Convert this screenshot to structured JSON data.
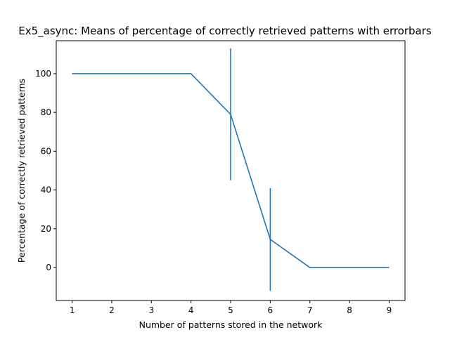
{
  "chart_data": {
    "type": "line",
    "title": "Ex5_async: Means of percentage of correctly retrieved patterns with errorbars",
    "xlabel": "Number of patterns stored in the network",
    "ylabel": "Percentage of correctly retrieved patterns",
    "x": [
      1,
      2,
      3,
      4,
      5,
      6,
      7,
      8,
      9
    ],
    "series": [
      {
        "values": [
          100,
          100,
          100,
          100,
          79,
          14.5,
          0,
          0,
          0
        ],
        "errors": [
          0,
          0,
          0,
          0,
          34,
          26.5,
          0,
          0,
          0
        ],
        "color": "#1f77b4"
      }
    ],
    "xlim": [
      0.6,
      9.4
    ],
    "ylim": [
      -17,
      117
    ],
    "xticks": [
      1,
      2,
      3,
      4,
      5,
      6,
      7,
      8,
      9
    ],
    "yticks": [
      0,
      20,
      40,
      60,
      80,
      100
    ],
    "grid": false,
    "legend": "none"
  }
}
